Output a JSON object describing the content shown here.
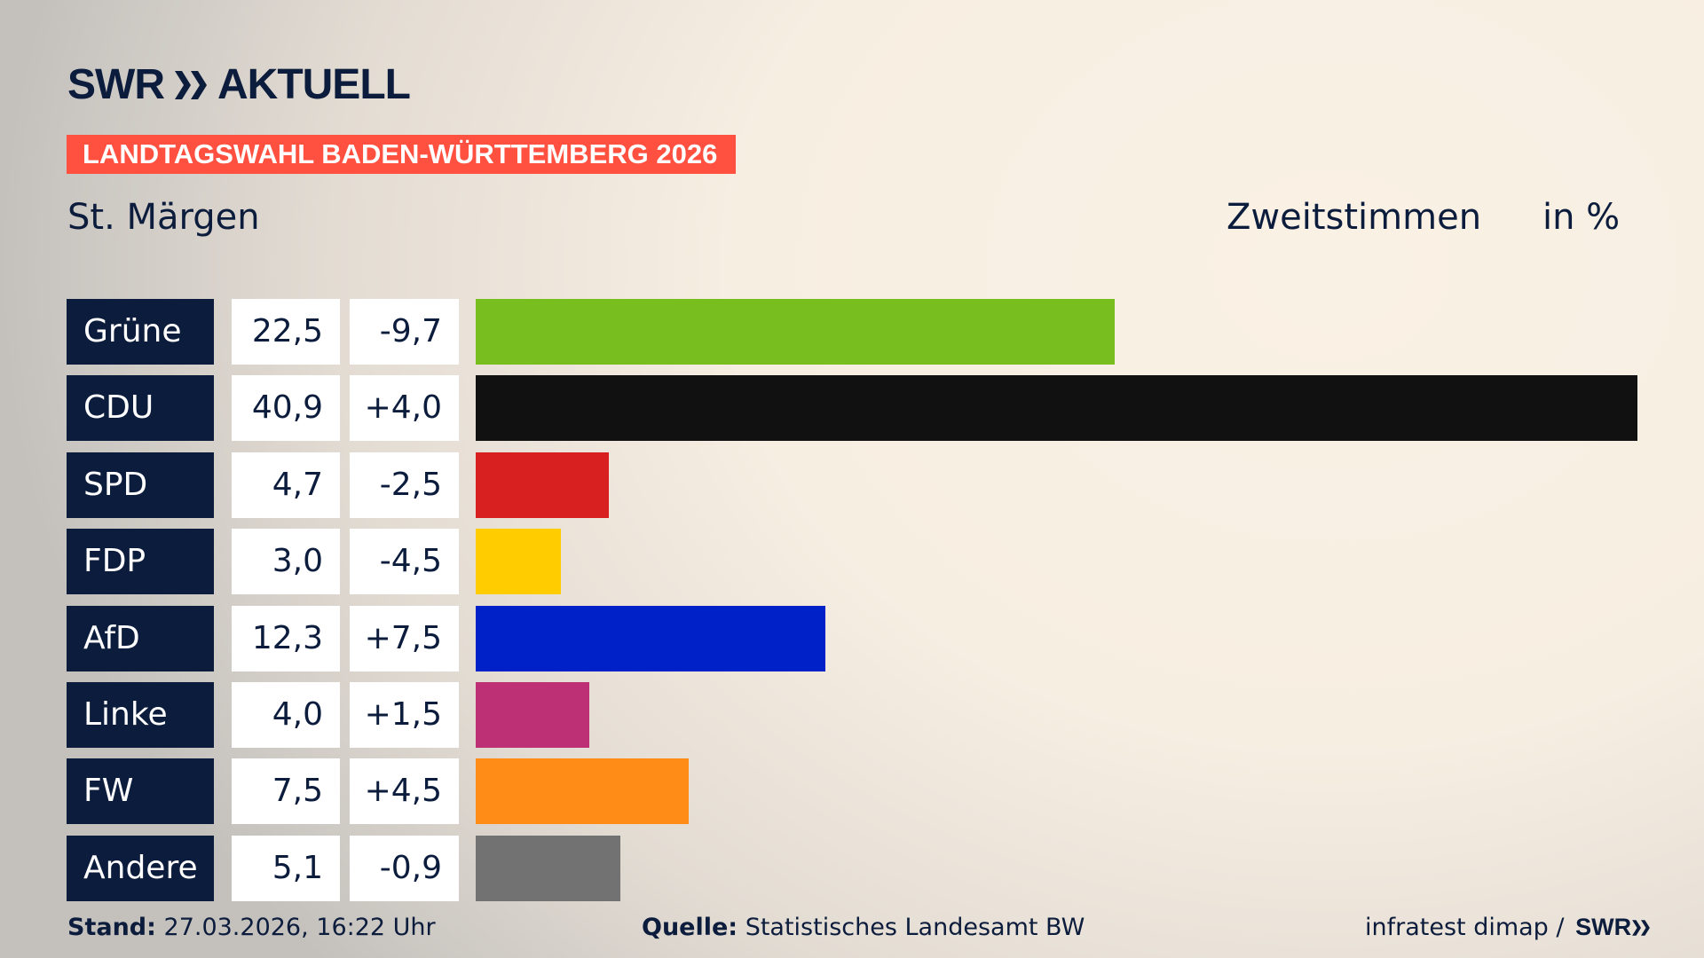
{
  "header": {
    "logo": "SWR AKTUELL",
    "banner": "LANDTAGSWAHL BADEN-WÜRTTEMBERG 2026",
    "place": "St. Märgen",
    "measure": "Zweitstimmen",
    "unit": "in %"
  },
  "chart_data": {
    "type": "bar",
    "orientation": "horizontal",
    "title": "St. Märgen",
    "categories": [
      "Grüne",
      "CDU",
      "SPD",
      "FDP",
      "AfD",
      "Linke",
      "FW",
      "Andere"
    ],
    "values": [
      22.5,
      40.9,
      4.7,
      3.0,
      12.3,
      4.0,
      7.5,
      5.1
    ],
    "values_label": [
      "22,5",
      "40,9",
      "4,7",
      "3,0",
      "12,3",
      "4,0",
      "7,5",
      "5,1"
    ],
    "change_label": [
      "-9,7",
      "+4,0",
      "-2,5",
      "-4,5",
      "+7,5",
      "+1,5",
      "+4,5",
      "-0,9"
    ],
    "change": [
      -9.7,
      4.0,
      -2.5,
      -4.5,
      7.5,
      1.5,
      4.5,
      -0.9
    ],
    "colors": [
      "#78be1e",
      "#111111",
      "#d7201f",
      "#ffcc00",
      "#0021c8",
      "#be3075",
      "#ff8c17",
      "#727272"
    ],
    "xlim": [
      0,
      40.9
    ],
    "grid": false
  },
  "footer": {
    "stand_label": "Stand:",
    "stand": "27.03.2026, 16:22 Uhr",
    "source_label": "Quelle:",
    "source": "Statistisches Landesamt BW",
    "credit": "infratest dimap / ",
    "credit_logo": "SWR"
  }
}
